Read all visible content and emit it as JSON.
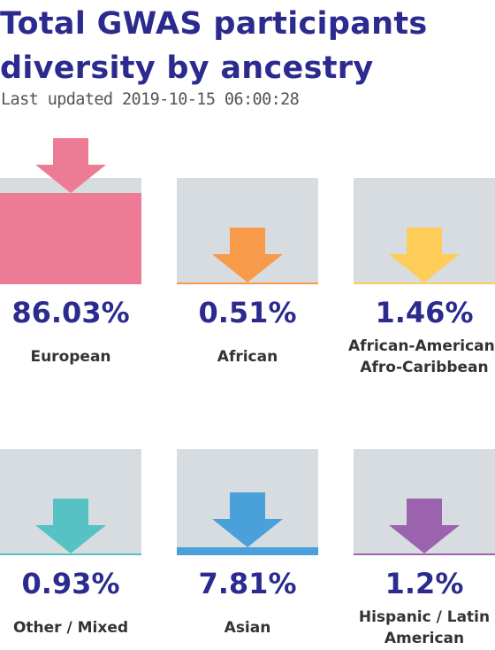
{
  "title": "Total GWAS participants diversity by ancestry",
  "updated": "Last updated 2019-10-15 06:00:28",
  "chart_data": {
    "type": "bar",
    "categories": [
      "European",
      "African",
      "African-American/ Afro-Caribbean",
      "Other / Mixed",
      "Asian",
      "Hispanic / Latin American"
    ],
    "values": [
      86.03,
      0.51,
      1.46,
      0.93,
      7.81,
      1.2
    ],
    "value_labels": [
      "86.03%",
      "0.51%",
      "1.46%",
      "0.93%",
      "7.81%",
      "1.2%"
    ],
    "label_lines": [
      [
        "European"
      ],
      [
        "African"
      ],
      [
        "African-American/",
        "Afro-Caribbean"
      ],
      [
        "Other / Mixed"
      ],
      [
        "Asian"
      ],
      [
        "Hispanic / Latin",
        "American"
      ]
    ],
    "colors": [
      "#ee7b95",
      "#f79a4a",
      "#fecd59",
      "#56c2c3",
      "#4aa0db",
      "#9b63ad"
    ],
    "ylim": [
      0,
      100
    ],
    "unit": "%"
  }
}
